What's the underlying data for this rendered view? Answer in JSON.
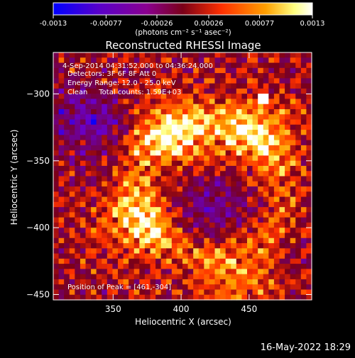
{
  "colorbar": {
    "tick_labels": [
      "-0.0013",
      "-0.00077",
      "-0.00026",
      "0.00026",
      "0.00077",
      "0.0013"
    ],
    "unit_label": "(photons cm⁻² s⁻¹ asec⁻²)",
    "range": [
      -0.0013,
      0.0013
    ]
  },
  "plot": {
    "title": "Reconstructed RHESSI Image",
    "annotations": {
      "time_range": "4-Sep-2014 04:31:52.000 to 04:36:24.000",
      "detectors": "Detectors: 3F 6F 8F  Att 0",
      "energy_range": "Energy Range: 12.0 - 25.0 keV",
      "method_counts": "Clean     Total counts: 1.59E+03",
      "peak": "Position of Peak = [461,-304]"
    }
  },
  "footer": {
    "timestamp": "16-May-2022 18:29"
  },
  "chart_data": {
    "type": "heatmap",
    "title": "Reconstructed RHESSI Image",
    "xlabel": "Heliocentric X (arcsec)",
    "ylabel": "Heliocentric Y (arcsec)",
    "xlim": [
      306,
      496
    ],
    "ylim": [
      -454,
      -269
    ],
    "xticks": [
      350,
      400,
      450
    ],
    "yticks": [
      -300,
      -350,
      -400,
      -450
    ],
    "peak_position": [
      461,
      -304
    ],
    "colormap": [
      "#0000ff",
      "#6a00c8",
      "#7a0018",
      "#ff3000",
      "#ffa000",
      "#ffff80",
      "#ffffff"
    ],
    "value_range": [
      -0.0013,
      0.0013
    ],
    "grid_size": [
      48,
      48
    ],
    "features": [
      {
        "name": "upper bright arc",
        "center": [
          395,
          -330
        ],
        "value": 0.0009
      },
      {
        "name": "right bright ridge",
        "center": [
          455,
          -330
        ],
        "value": 0.0008
      },
      {
        "name": "lower-left blob",
        "center": [
          370,
          -395
        ],
        "value": 0.0008
      },
      {
        "name": "lower-right blob",
        "center": [
          440,
          -440
        ],
        "value": 0.0006
      },
      {
        "name": "central dark lane",
        "center": [
          420,
          -385
        ],
        "value": -0.0006
      },
      {
        "name": "upper-left dark region",
        "center": [
          330,
          -320
        ],
        "value": -0.0007
      }
    ]
  }
}
